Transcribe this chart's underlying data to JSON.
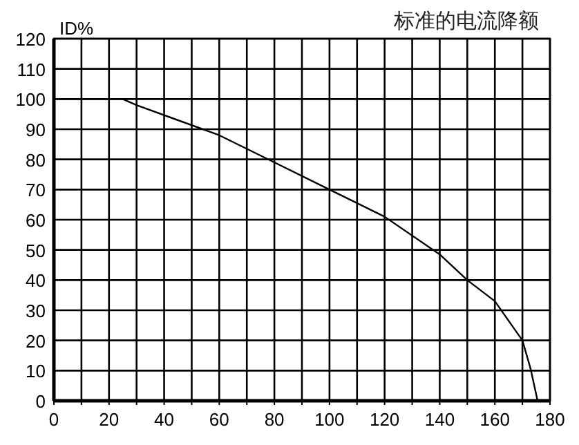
{
  "chart_data": {
    "type": "line",
    "title": "标准的电流降额",
    "ylabel": "ID%",
    "x": [
      0,
      25,
      30,
      60,
      80,
      100,
      120,
      140,
      150,
      160,
      170,
      173,
      175.5
    ],
    "series": [
      {
        "color": "#000000",
        "values": [
          100,
          100,
          98,
          88,
          79,
          70,
          61,
          48.5,
          40,
          33,
          20,
          10.5,
          0
        ]
      }
    ],
    "xlim": [
      0,
      180
    ],
    "ylim": [
      0,
      120
    ],
    "xticks": [
      0,
      {
        "value": 10,
        "label": null
      },
      20,
      {
        "value": 30,
        "label": null
      },
      40,
      {
        "value": 50,
        "label": null
      },
      60,
      {
        "value": 70,
        "label": null
      },
      80,
      {
        "value": 90,
        "label": null
      },
      100,
      {
        "value": 110,
        "label": null
      },
      120,
      {
        "value": 130,
        "label": null
      },
      140,
      {
        "value": 150,
        "label": null
      },
      160,
      {
        "value": 170,
        "label": null
      },
      180
    ],
    "yticks": [
      0,
      10,
      20,
      30,
      40,
      50,
      60,
      70,
      80,
      90,
      100,
      110,
      120
    ],
    "grid": true,
    "marker": "none",
    "line_style": "solid"
  }
}
